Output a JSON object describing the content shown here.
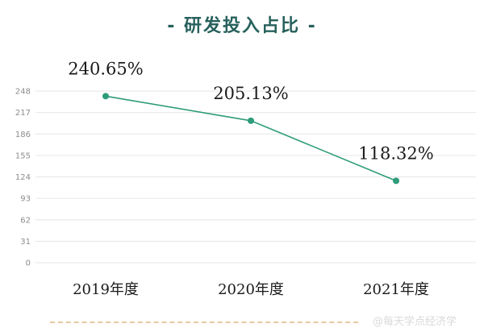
{
  "watermark": "@每天学点经济学",
  "chart_data": {
    "type": "line",
    "title": "- 研发投入占比 -",
    "categories": [
      "2019年度",
      "2020年度",
      "2021年度"
    ],
    "series": [
      {
        "values": [
          240.65,
          205.13,
          118.32
        ],
        "data_labels": [
          "240.65%",
          "205.13%",
          "118.32%"
        ],
        "color": "#2e9c7a"
      }
    ],
    "yticks": [
      0,
      31,
      62,
      93,
      124,
      155,
      186,
      217,
      248
    ],
    "ylim": [
      0,
      248
    ],
    "grid": true,
    "xlabel": "",
    "ylabel": ""
  }
}
